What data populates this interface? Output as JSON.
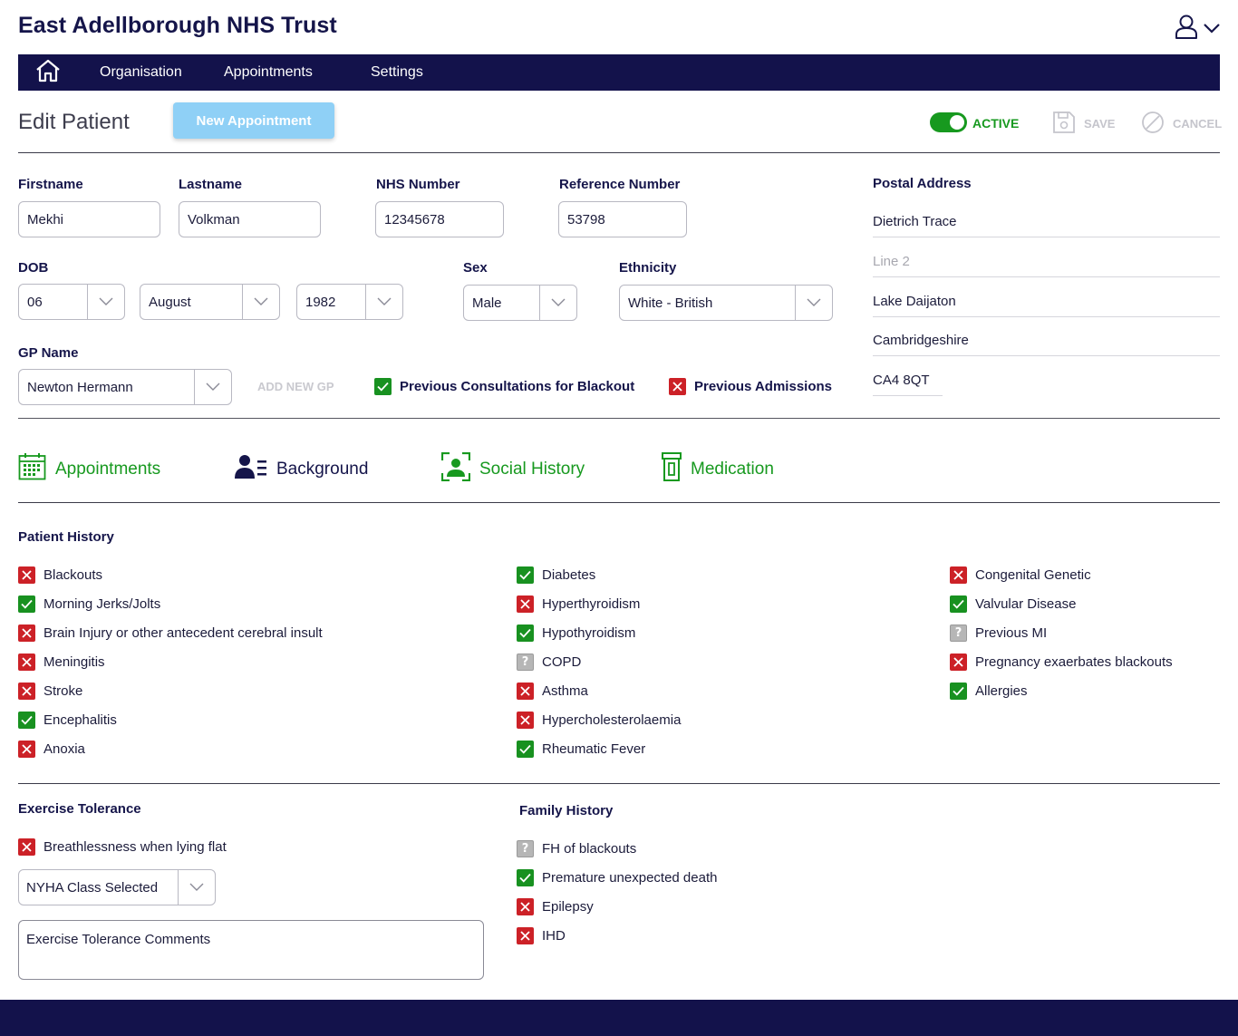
{
  "app": {
    "title": "East Adellborough NHS Trust"
  },
  "nav": {
    "items": [
      "Organisation",
      "Appointments",
      "Settings"
    ]
  },
  "page": {
    "title": "Edit Patient",
    "new_appointment": "New Appointment",
    "active_label": "ACTIVE",
    "active": true,
    "save_label": "SAVE",
    "cancel_label": "CANCEL"
  },
  "patient": {
    "firstname": {
      "label": "Firstname",
      "value": "Mekhi"
    },
    "lastname": {
      "label": "Lastname",
      "value": "Volkman"
    },
    "nhs_number": {
      "label": "NHS Number",
      "value": "12345678"
    },
    "reference_number": {
      "label": "Reference Number",
      "value": "53798"
    },
    "dob": {
      "label": "DOB",
      "day": "06",
      "month": "August",
      "year": "1982"
    },
    "sex": {
      "label": "Sex",
      "value": "Male"
    },
    "ethnicity": {
      "label": "Ethnicity",
      "value": "White - British"
    },
    "gp": {
      "label": "GP Name",
      "value": "Newton Hermann",
      "add_label": "ADD NEW GP"
    },
    "flags": {
      "prev_consultations": {
        "label": "Previous Consultations for Blackout",
        "state": "yes"
      },
      "prev_admissions": {
        "label": "Previous Admissions",
        "state": "no"
      }
    }
  },
  "address": {
    "label": "Postal Address",
    "line1": "Dietrich Trace",
    "line2_placeholder": "Line 2",
    "town": "Lake Daijaton",
    "county": "Cambridgeshire",
    "postcode": "CA4 8QT"
  },
  "tabs": {
    "appointments": "Appointments",
    "background": "Background",
    "social_history": "Social History",
    "medication": "Medication"
  },
  "patient_history": {
    "title": "Patient History",
    "col1": [
      {
        "label": "Blackouts",
        "state": "no"
      },
      {
        "label": "Morning Jerks/Jolts",
        "state": "yes"
      },
      {
        "label": "Brain Injury or other antecedent cerebral insult",
        "state": "no"
      },
      {
        "label": "Meningitis",
        "state": "no"
      },
      {
        "label": "Stroke",
        "state": "no"
      },
      {
        "label": "Encephalitis",
        "state": "yes"
      },
      {
        "label": "Anoxia",
        "state": "no"
      }
    ],
    "col2": [
      {
        "label": "Diabetes",
        "state": "yes"
      },
      {
        "label": "Hyperthyroidism",
        "state": "no"
      },
      {
        "label": "Hypothyroidism",
        "state": "yes"
      },
      {
        "label": "COPD",
        "state": "unk"
      },
      {
        "label": "Asthma",
        "state": "no"
      },
      {
        "label": "Hypercholesterolaemia",
        "state": "no"
      },
      {
        "label": "Rheumatic Fever",
        "state": "yes"
      }
    ],
    "col3": [
      {
        "label": "Congenital Genetic",
        "state": "no"
      },
      {
        "label": "Valvular Disease",
        "state": "yes"
      },
      {
        "label": "Previous MI",
        "state": "unk"
      },
      {
        "label": "Pregnancy exaerbates blackouts",
        "state": "no"
      },
      {
        "label": "Allergies",
        "state": "yes"
      }
    ]
  },
  "exercise_tolerance": {
    "title": "Exercise Tolerance",
    "breathlessness": {
      "label": "Breathlessness when lying flat",
      "state": "no"
    },
    "nyha_select": "NYHA Class Selected",
    "comments_placeholder": "Exercise Tolerance Comments"
  },
  "family_history": {
    "title": "Family History",
    "items": [
      {
        "label": "FH of blackouts",
        "state": "unk"
      },
      {
        "label": "Premature unexpected death",
        "state": "yes"
      },
      {
        "label": "Epilepsy",
        "state": "no"
      },
      {
        "label": "IHD",
        "state": "no"
      }
    ]
  },
  "colors": {
    "navy": "#13124b",
    "green": "#17991f",
    "red": "#cc2127",
    "light_blue": "#8fd0f6"
  }
}
